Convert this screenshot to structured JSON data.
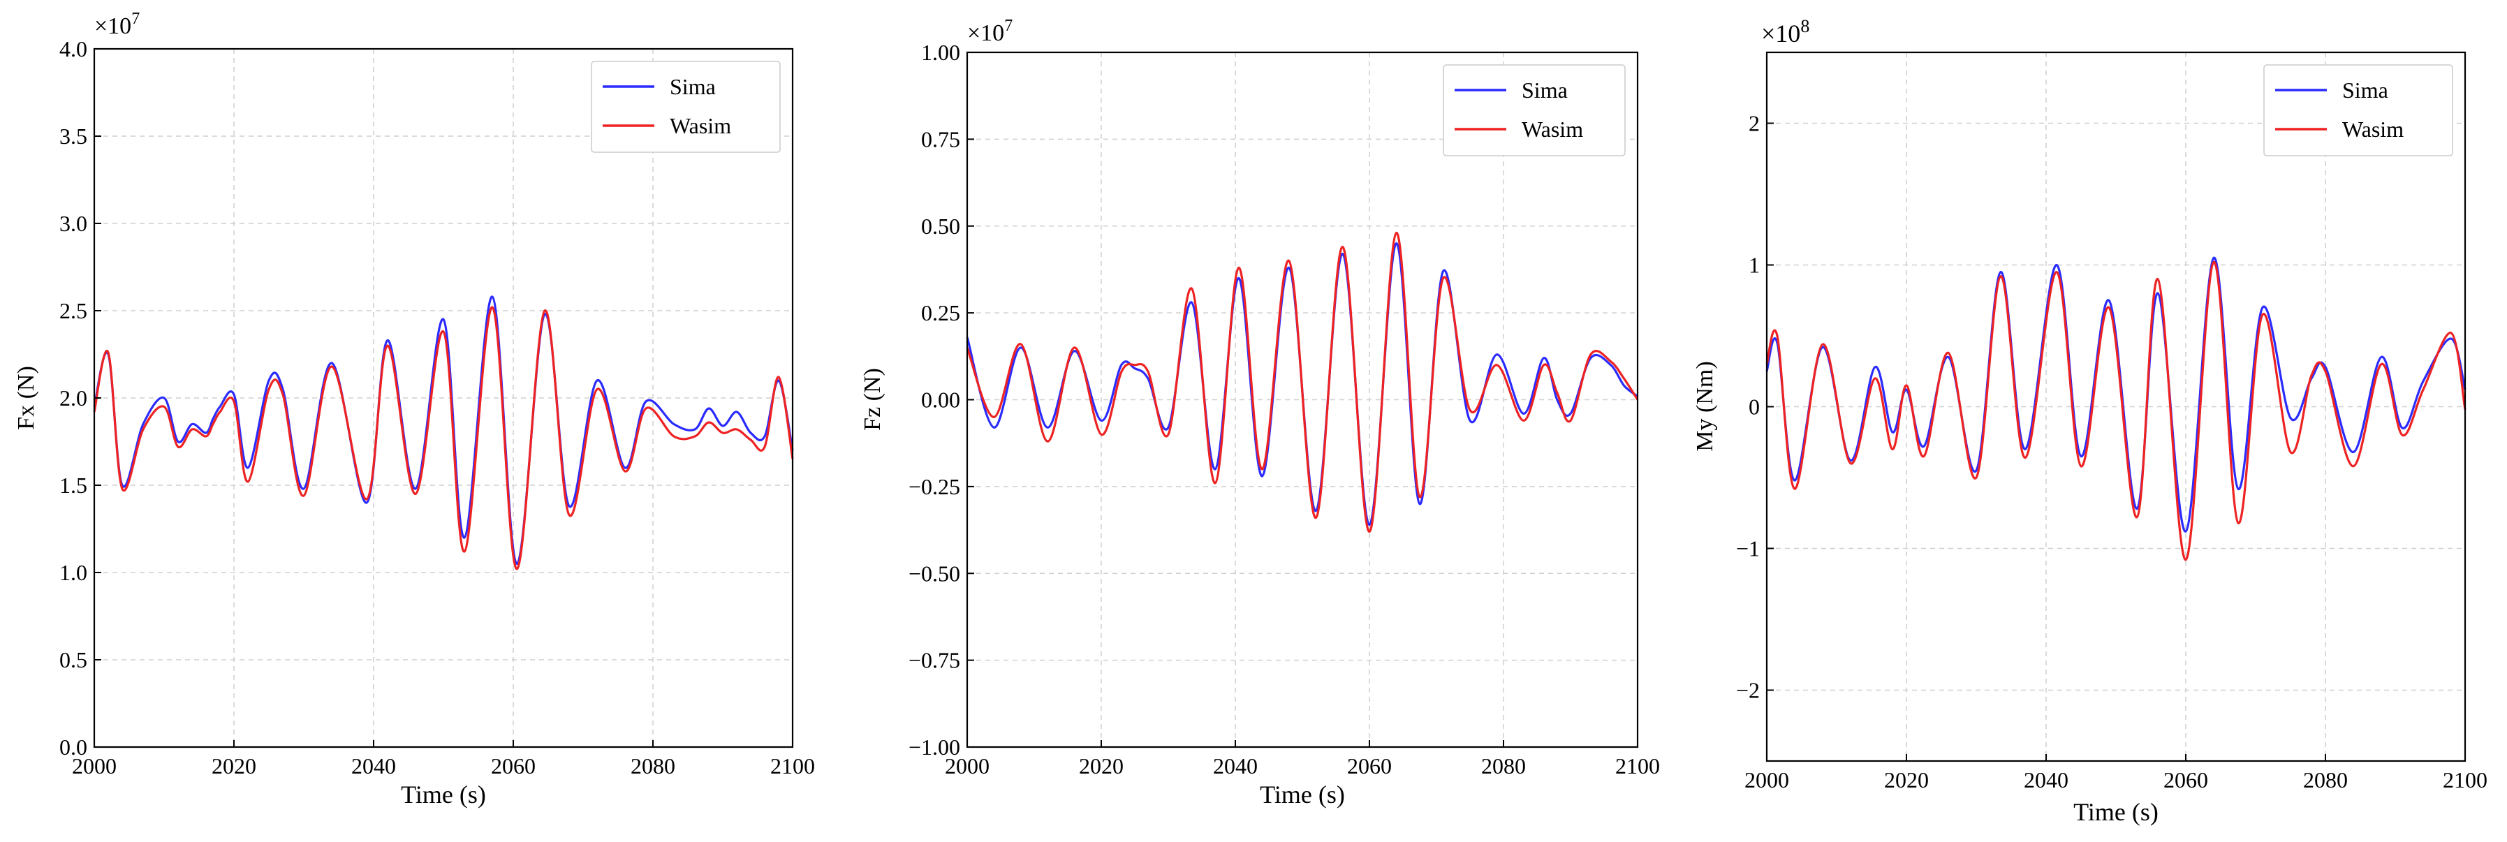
{
  "chart_data": [
    {
      "type": "line",
      "xlabel": "Time (s)",
      "ylabel": "Fx (N)",
      "exponent_label": "×10",
      "exponent_power": "7",
      "xlim": [
        2000,
        2100
      ],
      "ylim": [
        0,
        4.0
      ],
      "xticks": [
        2000,
        2020,
        2040,
        2060,
        2080,
        2100
      ],
      "yticks": [
        0.0,
        0.5,
        1.0,
        1.5,
        2.0,
        2.5,
        3.0,
        3.5,
        4.0
      ],
      "ytick_labels": [
        "0.0",
        "0.5",
        "1.0",
        "1.5",
        "2.0",
        "2.5",
        "3.0",
        "3.5",
        "4.0"
      ],
      "grid": true,
      "legend_position": "top-right",
      "series": [
        {
          "name": "Sima",
          "color": "#2b2bff",
          "x": [
            2000,
            2002,
            2004,
            2007,
            2010,
            2012,
            2014,
            2016,
            2017,
            2018,
            2020,
            2022,
            2025,
            2027,
            2030,
            2034,
            2039,
            2042,
            2046,
            2050,
            2053,
            2057,
            2060.5,
            2064.5,
            2068,
            2072,
            2076,
            2079,
            2083,
            2086,
            2088,
            2090,
            2092,
            2094,
            2096,
            2098,
            2100
          ],
          "y": [
            1.95,
            2.25,
            1.5,
            1.85,
            2.0,
            1.75,
            1.85,
            1.8,
            1.88,
            1.95,
            2.02,
            1.6,
            2.1,
            2.05,
            1.48,
            2.2,
            1.4,
            2.33,
            1.48,
            2.45,
            1.2,
            2.58,
            1.05,
            2.48,
            1.38,
            2.1,
            1.6,
            1.98,
            1.85,
            1.82,
            1.94,
            1.84,
            1.92,
            1.8,
            1.78,
            2.1,
            1.7
          ]
        },
        {
          "name": "Wasim",
          "color": "#ee2222",
          "x": [
            2000,
            2002,
            2004,
            2007,
            2010,
            2012,
            2014,
            2016,
            2017,
            2018,
            2020,
            2022,
            2025,
            2027,
            2030,
            2034,
            2039,
            2042,
            2046,
            2050,
            2053,
            2057,
            2060.5,
            2064.5,
            2068,
            2072,
            2076,
            2079,
            2083,
            2086,
            2088,
            2090,
            2092,
            2094,
            2096,
            2098,
            2100
          ],
          "y": [
            1.92,
            2.26,
            1.48,
            1.82,
            1.95,
            1.72,
            1.82,
            1.78,
            1.85,
            1.92,
            1.98,
            1.52,
            2.05,
            2.02,
            1.44,
            2.18,
            1.42,
            2.3,
            1.45,
            2.38,
            1.12,
            2.52,
            1.02,
            2.5,
            1.33,
            2.05,
            1.58,
            1.94,
            1.78,
            1.78,
            1.86,
            1.8,
            1.82,
            1.76,
            1.72,
            2.12,
            1.65
          ]
        }
      ]
    },
    {
      "type": "line",
      "xlabel": "Time (s)",
      "ylabel": "Fz (N)",
      "exponent_label": "×10",
      "exponent_power": "7",
      "xlim": [
        2000,
        2100
      ],
      "ylim": [
        -1.0,
        1.0
      ],
      "xticks": [
        2000,
        2020,
        2040,
        2060,
        2080,
        2100
      ],
      "yticks": [
        -1.0,
        -0.75,
        -0.5,
        -0.25,
        0.0,
        0.25,
        0.5,
        0.75,
        1.0
      ],
      "ytick_labels": [
        "−1.00",
        "−0.75",
        "−0.50",
        "−0.25",
        "0.00",
        "0.25",
        "0.50",
        "0.75",
        "1.00"
      ],
      "grid": true,
      "legend_position": "top-right",
      "series": [
        {
          "name": "Sima",
          "color": "#2b2bff",
          "x": [
            2000,
            2004,
            2008,
            2012,
            2016,
            2020,
            2023,
            2025,
            2027,
            2030,
            2033.5,
            2037,
            2040.5,
            2044,
            2048,
            2052,
            2056,
            2060,
            2064,
            2067.5,
            2071,
            2075,
            2079,
            2083,
            2086,
            2088,
            2090,
            2093,
            2096,
            2098,
            2100
          ],
          "y": [
            0.18,
            -0.08,
            0.15,
            -0.08,
            0.14,
            -0.06,
            0.1,
            0.09,
            0.06,
            -0.08,
            0.28,
            -0.2,
            0.35,
            -0.22,
            0.38,
            -0.32,
            0.42,
            -0.36,
            0.45,
            -0.3,
            0.37,
            -0.06,
            0.13,
            -0.04,
            0.12,
            0.0,
            -0.04,
            0.12,
            0.1,
            0.04,
            0.01
          ]
        },
        {
          "name": "Wasim",
          "color": "#ee2222",
          "x": [
            2000,
            2004,
            2008,
            2012,
            2016,
            2020,
            2023,
            2025,
            2027,
            2030,
            2033.5,
            2037,
            2040.5,
            2044,
            2048,
            2052,
            2056,
            2060,
            2064,
            2067.5,
            2071,
            2075,
            2079,
            2083,
            2086,
            2088,
            2090,
            2093,
            2096,
            2098,
            2100
          ],
          "y": [
            0.15,
            -0.05,
            0.16,
            -0.12,
            0.15,
            -0.1,
            0.08,
            0.1,
            0.08,
            -0.1,
            0.32,
            -0.24,
            0.38,
            -0.2,
            0.4,
            -0.34,
            0.44,
            -0.38,
            0.48,
            -0.28,
            0.35,
            -0.03,
            0.1,
            -0.06,
            0.1,
            0.02,
            -0.06,
            0.13,
            0.11,
            0.06,
            0.0
          ]
        }
      ]
    },
    {
      "type": "line",
      "xlabel": "Time (s)",
      "ylabel": "My (Nm)",
      "exponent_label": "×10",
      "exponent_power": "8",
      "xlim": [
        2000,
        2100
      ],
      "ylim": [
        -2.5,
        2.5
      ],
      "xticks": [
        2000,
        2020,
        2040,
        2060,
        2080,
        2100
      ],
      "yticks": [
        -2,
        -1,
        0,
        1,
        2
      ],
      "ytick_labels": [
        "−2",
        "−1",
        "0",
        "1",
        "2"
      ],
      "grid": true,
      "legend_position": "top-right",
      "series": [
        {
          "name": "Sima",
          "color": "#2b2bff",
          "x": [
            2000,
            2001.5,
            2004,
            2008,
            2012,
            2015.5,
            2018,
            2020,
            2022.5,
            2026,
            2030,
            2033.5,
            2037,
            2041.5,
            2045,
            2049,
            2053,
            2056,
            2060,
            2064,
            2067.5,
            2071,
            2075,
            2078,
            2080,
            2084,
            2088,
            2091,
            2094,
            2098,
            2100
          ],
          "y": [
            0.25,
            0.45,
            -0.52,
            0.42,
            -0.38,
            0.28,
            -0.18,
            0.12,
            -0.28,
            0.35,
            -0.45,
            0.95,
            -0.3,
            1.0,
            -0.35,
            0.75,
            -0.72,
            0.8,
            -0.88,
            1.05,
            -0.58,
            0.7,
            -0.08,
            0.2,
            0.28,
            -0.32,
            0.35,
            -0.15,
            0.18,
            0.48,
            0.12
          ]
        },
        {
          "name": "Wasim",
          "color": "#ee2222",
          "x": [
            2000,
            2001.5,
            2004,
            2008,
            2012,
            2015.5,
            2018,
            2020,
            2022.5,
            2026,
            2030,
            2033.5,
            2037,
            2041.5,
            2045,
            2049,
            2053,
            2056,
            2060,
            2064,
            2067.5,
            2071,
            2075,
            2078,
            2080,
            2084,
            2088,
            2091,
            2094,
            2098,
            2100
          ],
          "y": [
            0.3,
            0.5,
            -0.58,
            0.44,
            -0.4,
            0.2,
            -0.3,
            0.15,
            -0.35,
            0.38,
            -0.5,
            0.92,
            -0.36,
            0.95,
            -0.42,
            0.7,
            -0.78,
            0.9,
            -1.08,
            1.02,
            -0.82,
            0.65,
            -0.32,
            0.22,
            0.25,
            -0.42,
            0.3,
            -0.2,
            0.12,
            0.52,
            -0.02
          ]
        }
      ]
    }
  ]
}
